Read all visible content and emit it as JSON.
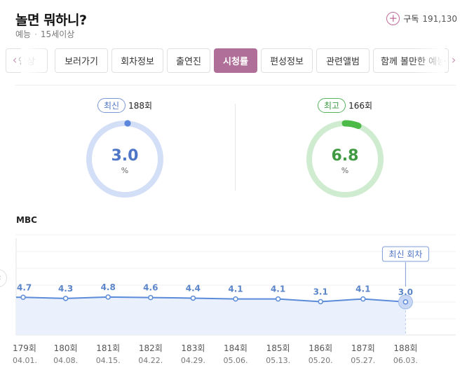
{
  "program": {
    "title": "놀면 뭐하니?",
    "genre": "예능",
    "age_rating": "15세이상",
    "subscribe_label": "구독",
    "subscriber_count": "191,130"
  },
  "tabs": [
    {
      "label": "영상",
      "active": false
    },
    {
      "label": "보러가기",
      "active": false
    },
    {
      "label": "회차정보",
      "active": false
    },
    {
      "label": "출연진",
      "active": false
    },
    {
      "label": "시청률",
      "active": true
    },
    {
      "label": "편성정보",
      "active": false
    },
    {
      "label": "관련앨범",
      "active": false
    },
    {
      "label": "함께 볼만한 예능",
      "active": false
    }
  ],
  "latest": {
    "badge": "최신",
    "episode": "188회",
    "value": "3.0",
    "unit": "%",
    "color": "#5c86dc",
    "track": "#d3def7"
  },
  "best": {
    "badge": "최고",
    "episode": "166회",
    "value": "6.8",
    "unit": "%",
    "color": "#4cba47",
    "track": "#cfecd0"
  },
  "chart_data": {
    "type": "line",
    "channel_label": "MBC",
    "latest_callout": "최신 회차",
    "episodes": [
      "179회",
      "180회",
      "181회",
      "182회",
      "183회",
      "184회",
      "185회",
      "186회",
      "187회",
      "188회"
    ],
    "dates": [
      "04.01.",
      "04.08.",
      "04.15.",
      "04.22.",
      "04.29.",
      "05.06.",
      "05.13.",
      "05.20.",
      "05.27.",
      "06.03."
    ],
    "values": [
      4.7,
      4.3,
      4.8,
      4.6,
      4.4,
      4.1,
      4.1,
      3.1,
      4.1,
      3.0
    ],
    "value_labels": [
      "4.7",
      "4.3",
      "4.8",
      "4.6",
      "4.4",
      "4.1",
      "4.1",
      "3.1",
      "4.1",
      "3.0"
    ],
    "line_color": "#5b8bd9",
    "fill_color": "#eaf1fc",
    "grid": true
  }
}
